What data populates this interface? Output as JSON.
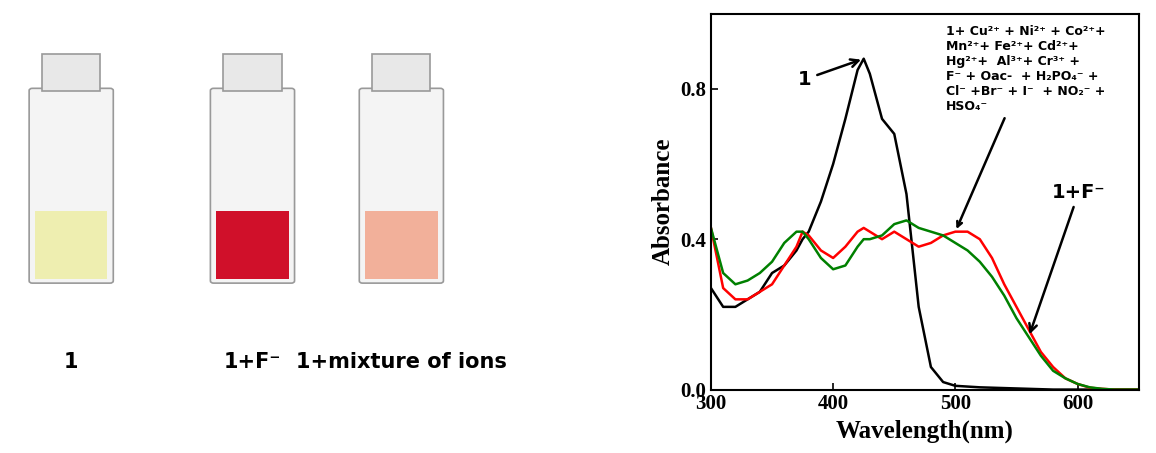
{
  "vials": {
    "labels": [
      "1",
      "1+F⁻",
      "1+mixture of ions"
    ]
  },
  "chart_data": {
    "type": "line",
    "x_label": "Wavelength(nm)",
    "y_label": "Absorbance",
    "x": [
      300,
      310,
      320,
      330,
      340,
      350,
      360,
      370,
      375,
      380,
      390,
      400,
      410,
      420,
      425,
      430,
      440,
      450,
      460,
      470,
      480,
      490,
      500,
      510,
      520,
      530,
      540,
      550,
      560,
      570,
      580,
      590,
      600,
      610,
      620,
      630,
      640,
      650
    ],
    "series": [
      {
        "name": "1",
        "color": "#000000",
        "values": [
          0.27,
          0.22,
          0.22,
          0.24,
          0.26,
          0.31,
          0.33,
          0.37,
          0.4,
          0.42,
          0.5,
          0.6,
          0.72,
          0.85,
          0.88,
          0.84,
          0.72,
          0.68,
          0.52,
          0.22,
          0.06,
          0.02,
          0.01,
          0.008,
          0.006,
          0.005,
          0.004,
          0.003,
          0.002,
          0.001,
          0.0,
          0.0,
          0.0,
          0.0,
          0.0,
          0.0,
          0.0,
          0.0
        ]
      },
      {
        "name": "1+ Cu²⁺ + Ni²⁺ + Co²⁺+\nMn²⁺+ Fe²⁺+ Cd²⁺+\nHg²⁺+  Al³⁺+ Cr³⁺ +\nF⁻ + Oac-  + H₂PO₄⁻ +\nCl⁻ +Br⁻ + I⁻  + NO₂⁻ +\nHSO₄⁻",
        "color": "#ff0000",
        "values": [
          0.43,
          0.27,
          0.24,
          0.24,
          0.26,
          0.28,
          0.33,
          0.38,
          0.42,
          0.41,
          0.37,
          0.35,
          0.38,
          0.42,
          0.43,
          0.42,
          0.4,
          0.42,
          0.4,
          0.38,
          0.39,
          0.41,
          0.42,
          0.42,
          0.4,
          0.35,
          0.28,
          0.22,
          0.16,
          0.1,
          0.06,
          0.03,
          0.015,
          0.005,
          0.002,
          0.0,
          0.0,
          0.0
        ]
      },
      {
        "name": "1+F⁻",
        "color": "#008000",
        "values": [
          0.43,
          0.31,
          0.28,
          0.29,
          0.31,
          0.34,
          0.39,
          0.42,
          0.42,
          0.4,
          0.35,
          0.32,
          0.33,
          0.38,
          0.4,
          0.4,
          0.41,
          0.44,
          0.45,
          0.43,
          0.42,
          0.41,
          0.39,
          0.37,
          0.34,
          0.3,
          0.25,
          0.19,
          0.14,
          0.09,
          0.05,
          0.03,
          0.015,
          0.006,
          0.002,
          0.0,
          0.0,
          0.0
        ]
      }
    ],
    "xlim": [
      300,
      650
    ],
    "ylim": [
      0.0,
      1.0
    ],
    "xticks": [
      300,
      400,
      500,
      600
    ],
    "yticks": [
      0.0,
      0.4,
      0.8
    ]
  }
}
